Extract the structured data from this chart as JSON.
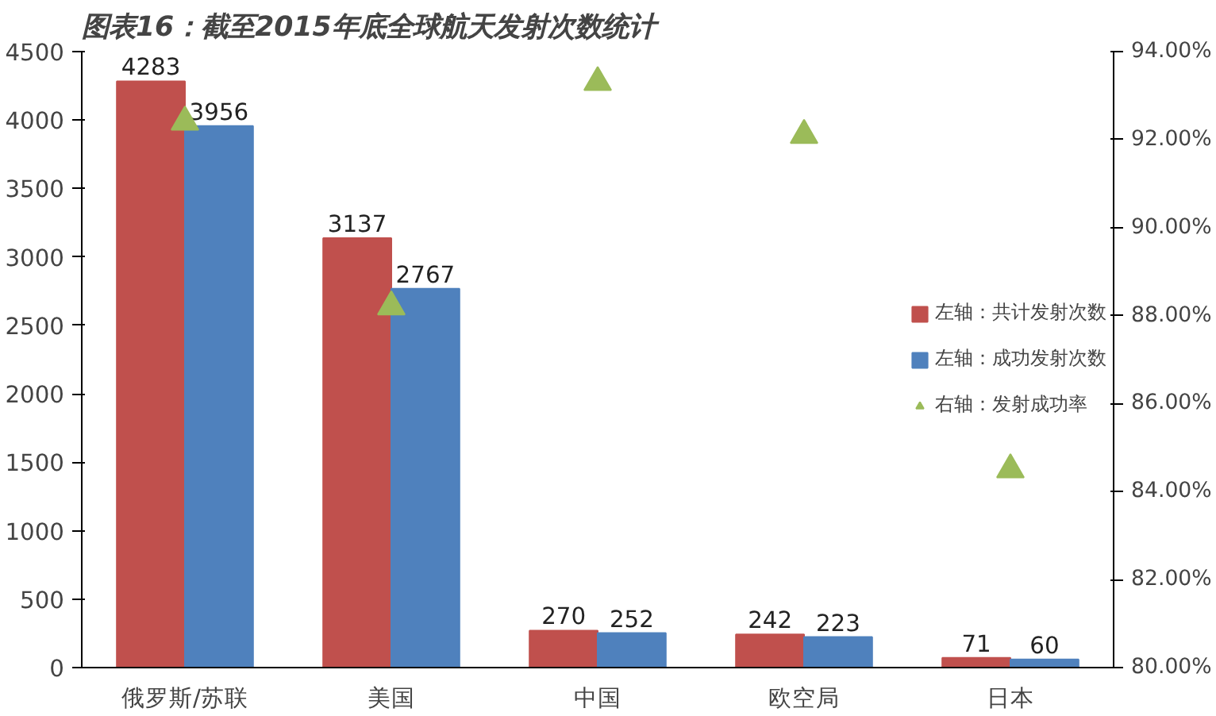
{
  "chart_data": {
    "type": "bar",
    "title": "图表16：截至2015年底全球航天发射次数统计",
    "categories": [
      "俄罗斯/苏联",
      "美国",
      "中国",
      "欧空局",
      "日本"
    ],
    "series": [
      {
        "name": "左轴：共计发射次数",
        "color": "#c0504d",
        "values": [
          4283,
          3137,
          270,
          242,
          71
        ],
        "value_labels": [
          "4283",
          "3137",
          "270",
          "242",
          "71"
        ]
      },
      {
        "name": "左轴：成功发射次数",
        "color": "#4f81bd",
        "values": [
          3956,
          2767,
          252,
          223,
          60
        ],
        "value_labels": [
          "3956",
          "2767",
          "252",
          "223",
          "60"
        ]
      },
      {
        "name": "右轴：发射成功率",
        "type": "scatter",
        "axis": "y2",
        "color": "#9bbb59",
        "values": [
          92.4,
          88.2,
          93.3,
          92.1,
          84.5
        ]
      }
    ],
    "ylim": [
      0,
      4500
    ],
    "yticks": [
      0,
      500,
      1000,
      1500,
      2000,
      2500,
      3000,
      3500,
      4000,
      4500
    ],
    "y2lim": [
      80,
      94
    ],
    "y2ticks": [
      {
        "value": 80,
        "label": "80.00%"
      },
      {
        "value": 82,
        "label": "82.00%"
      },
      {
        "value": 84,
        "label": "84.00%"
      },
      {
        "value": 86,
        "label": "86.00%"
      },
      {
        "value": 88,
        "label": "88.00%"
      },
      {
        "value": 90,
        "label": "90.00%"
      },
      {
        "value": 92,
        "label": "92.00%"
      },
      {
        "value": 94,
        "label": "94.00%"
      }
    ],
    "legend": "right",
    "grid": false,
    "marker": "triangle"
  }
}
